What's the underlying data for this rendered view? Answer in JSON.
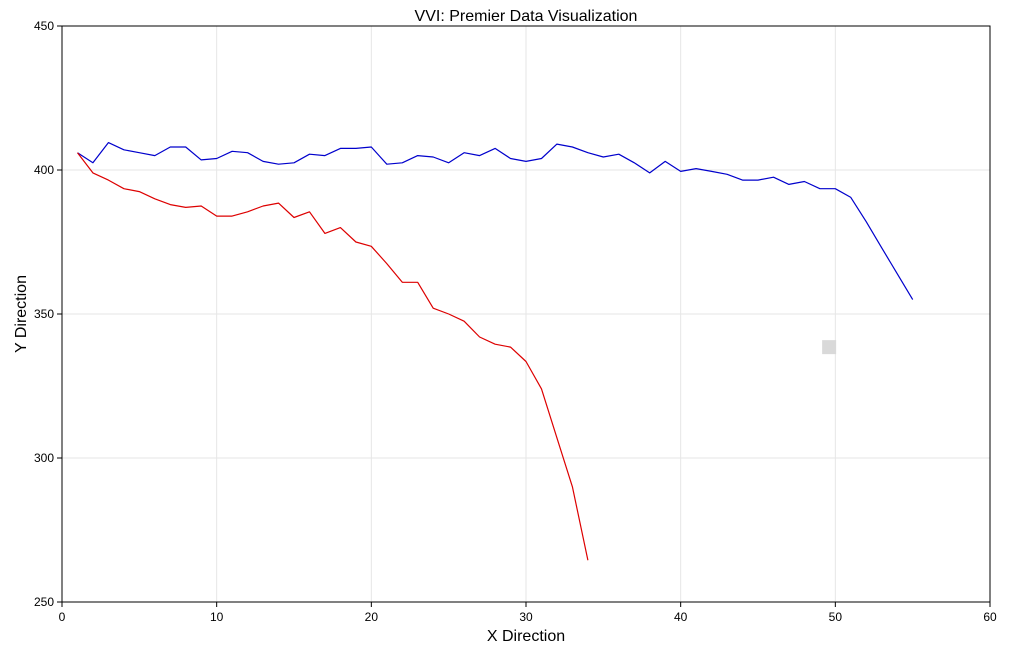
{
  "chart_data": {
    "type": "line",
    "title": "VVI: Premier Data Visualization",
    "xlabel": "X Direction",
    "ylabel": "Y Direction",
    "xlim": [
      0,
      60
    ],
    "ylim": [
      250,
      450
    ],
    "xticks": [
      0,
      10,
      20,
      30,
      40,
      50,
      60
    ],
    "yticks": [
      250,
      300,
      350,
      400,
      450
    ],
    "grid": true,
    "legend": "none",
    "series": [
      {
        "color": "#0000cc",
        "x": [
          1,
          2,
          3,
          4,
          5,
          6,
          7,
          8,
          9,
          10,
          11,
          12,
          13,
          14,
          15,
          16,
          17,
          18,
          19,
          20,
          21,
          22,
          23,
          24,
          25,
          26,
          27,
          28,
          29,
          30,
          31,
          32,
          33,
          34,
          35,
          36,
          37,
          38,
          39,
          40,
          41,
          42,
          43,
          44,
          45,
          46,
          47,
          48,
          49,
          50,
          51,
          52,
          53,
          54,
          55
        ],
        "y": [
          406,
          402.5,
          409.5,
          407,
          406,
          405,
          408,
          408,
          403.5,
          404,
          406.5,
          406,
          403,
          402,
          402.5,
          405.5,
          405,
          407.5,
          407.5,
          408,
          402,
          402.5,
          405,
          404.5,
          402.5,
          406,
          405,
          407.5,
          404,
          403,
          404,
          409,
          408,
          406,
          404.5,
          405.5,
          402.5,
          399,
          403,
          399.5,
          400.5,
          399.5,
          398.5,
          396.5,
          396.5,
          397.5,
          395,
          396,
          393.5,
          393.5,
          390.5,
          382,
          373,
          364,
          355
        ]
      },
      {
        "color": "#dd0000",
        "x": [
          1,
          2,
          3,
          4,
          5,
          6,
          7,
          8,
          9,
          10,
          11,
          12,
          13,
          14,
          15,
          16,
          17,
          18,
          19,
          20,
          21,
          22,
          23,
          24,
          25,
          26,
          27,
          28,
          29,
          30,
          31,
          32,
          33,
          34
        ],
        "y": [
          406,
          399,
          396.5,
          393.5,
          392.5,
          390,
          388,
          387,
          387.5,
          384,
          384,
          385.5,
          387.5,
          388.5,
          383.5,
          385.5,
          378,
          380,
          375,
          373.5,
          367.5,
          361,
          361,
          352,
          350,
          347.5,
          342,
          339.5,
          338.5,
          333.5,
          324,
          307,
          290,
          264.5
        ]
      }
    ],
    "annotations": [
      {
        "shape": "square",
        "color": "#d9d9d9",
        "x": 49.6,
        "y": 338.5
      }
    ]
  }
}
